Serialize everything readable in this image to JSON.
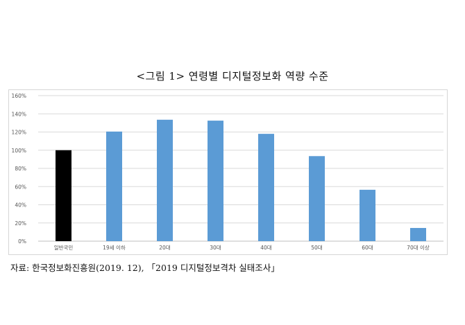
{
  "title": "<그림 1> 연령별 디지털정보화 역량 수준",
  "source": "자료: 한국정보화진흥원(2019. 12), 「2019 디지털정보격차 실태조사」",
  "chart_data": {
    "type": "bar",
    "title": "",
    "xlabel": "",
    "ylabel": "",
    "categories": [
      "일반국민",
      "19세 이하",
      "20대",
      "30대",
      "40대",
      "50대",
      "60대",
      "70대 이상"
    ],
    "values": [
      100,
      120.5,
      133.5,
      132.5,
      118,
      93.5,
      56.5,
      14.5
    ],
    "bar_colors": [
      "#000000",
      "#5b9bd5",
      "#5b9bd5",
      "#5b9bd5",
      "#5b9bd5",
      "#5b9bd5",
      "#5b9bd5",
      "#5b9bd5"
    ],
    "ylim": [
      0,
      160
    ],
    "yticks": [
      0,
      20,
      40,
      60,
      80,
      100,
      120,
      140,
      160
    ],
    "ytick_labels": [
      "0%",
      "20%",
      "40%",
      "60%",
      "80%",
      "100%",
      "120%",
      "140%",
      "160%"
    ],
    "grid": true,
    "legend": "none"
  }
}
